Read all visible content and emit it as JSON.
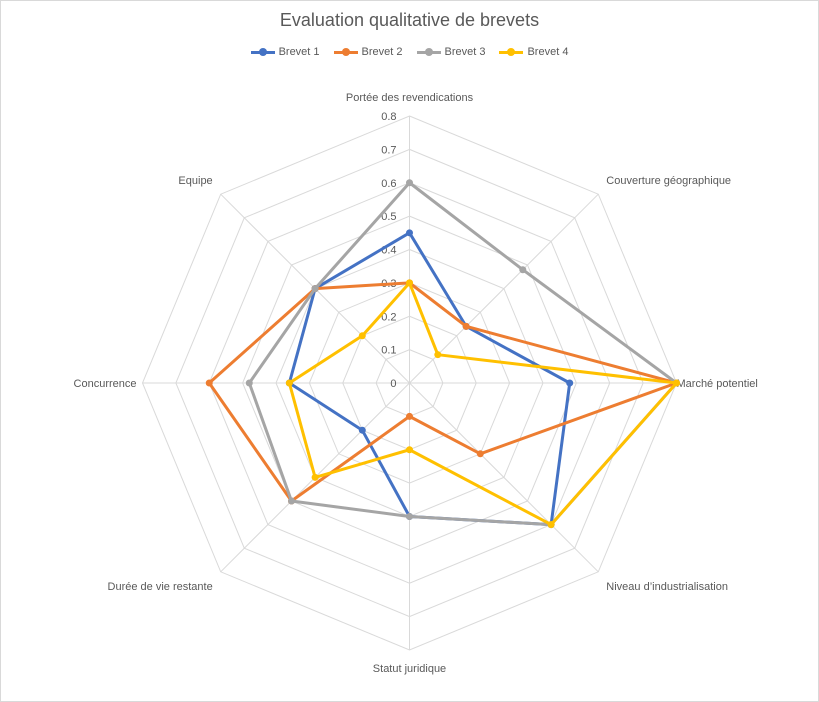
{
  "chart_data": {
    "type": "radar",
    "title": "Evaluation qualitative de brevets",
    "categories": [
      "Portée des revendications",
      "Couverture géographique",
      "Marché potentiel",
      "Niveau d’industrialisation",
      "Statut juridique",
      "Durée de vie restante",
      "Concurrence",
      "Equipe"
    ],
    "rlim": [
      0,
      0.8
    ],
    "ticks": [
      "0",
      "0.1",
      "0.2",
      "0.3",
      "0.4",
      "0.5",
      "0.6",
      "0.7",
      "0.8"
    ],
    "grid": true,
    "legend": "top",
    "series": [
      {
        "name": "Brevet 1",
        "color": "#4472c4",
        "values": [
          0.45,
          0.24,
          0.48,
          0.6,
          0.4,
          0.2,
          0.36,
          0.4
        ]
      },
      {
        "name": "Brevet 2",
        "color": "#ed7d31",
        "values": [
          0.3,
          0.24,
          0.8,
          0.3,
          0.1,
          0.5,
          0.6,
          0.4
        ]
      },
      {
        "name": "Brevet 3",
        "color": "#a5a5a5",
        "values": [
          0.6,
          0.48,
          0.8,
          0.6,
          0.4,
          0.5,
          0.48,
          0.4
        ]
      },
      {
        "name": "Brevet 4",
        "color": "#ffc000",
        "values": [
          0.3,
          0.12,
          0.8,
          0.6,
          0.2,
          0.4,
          0.36,
          0.2
        ]
      }
    ]
  }
}
